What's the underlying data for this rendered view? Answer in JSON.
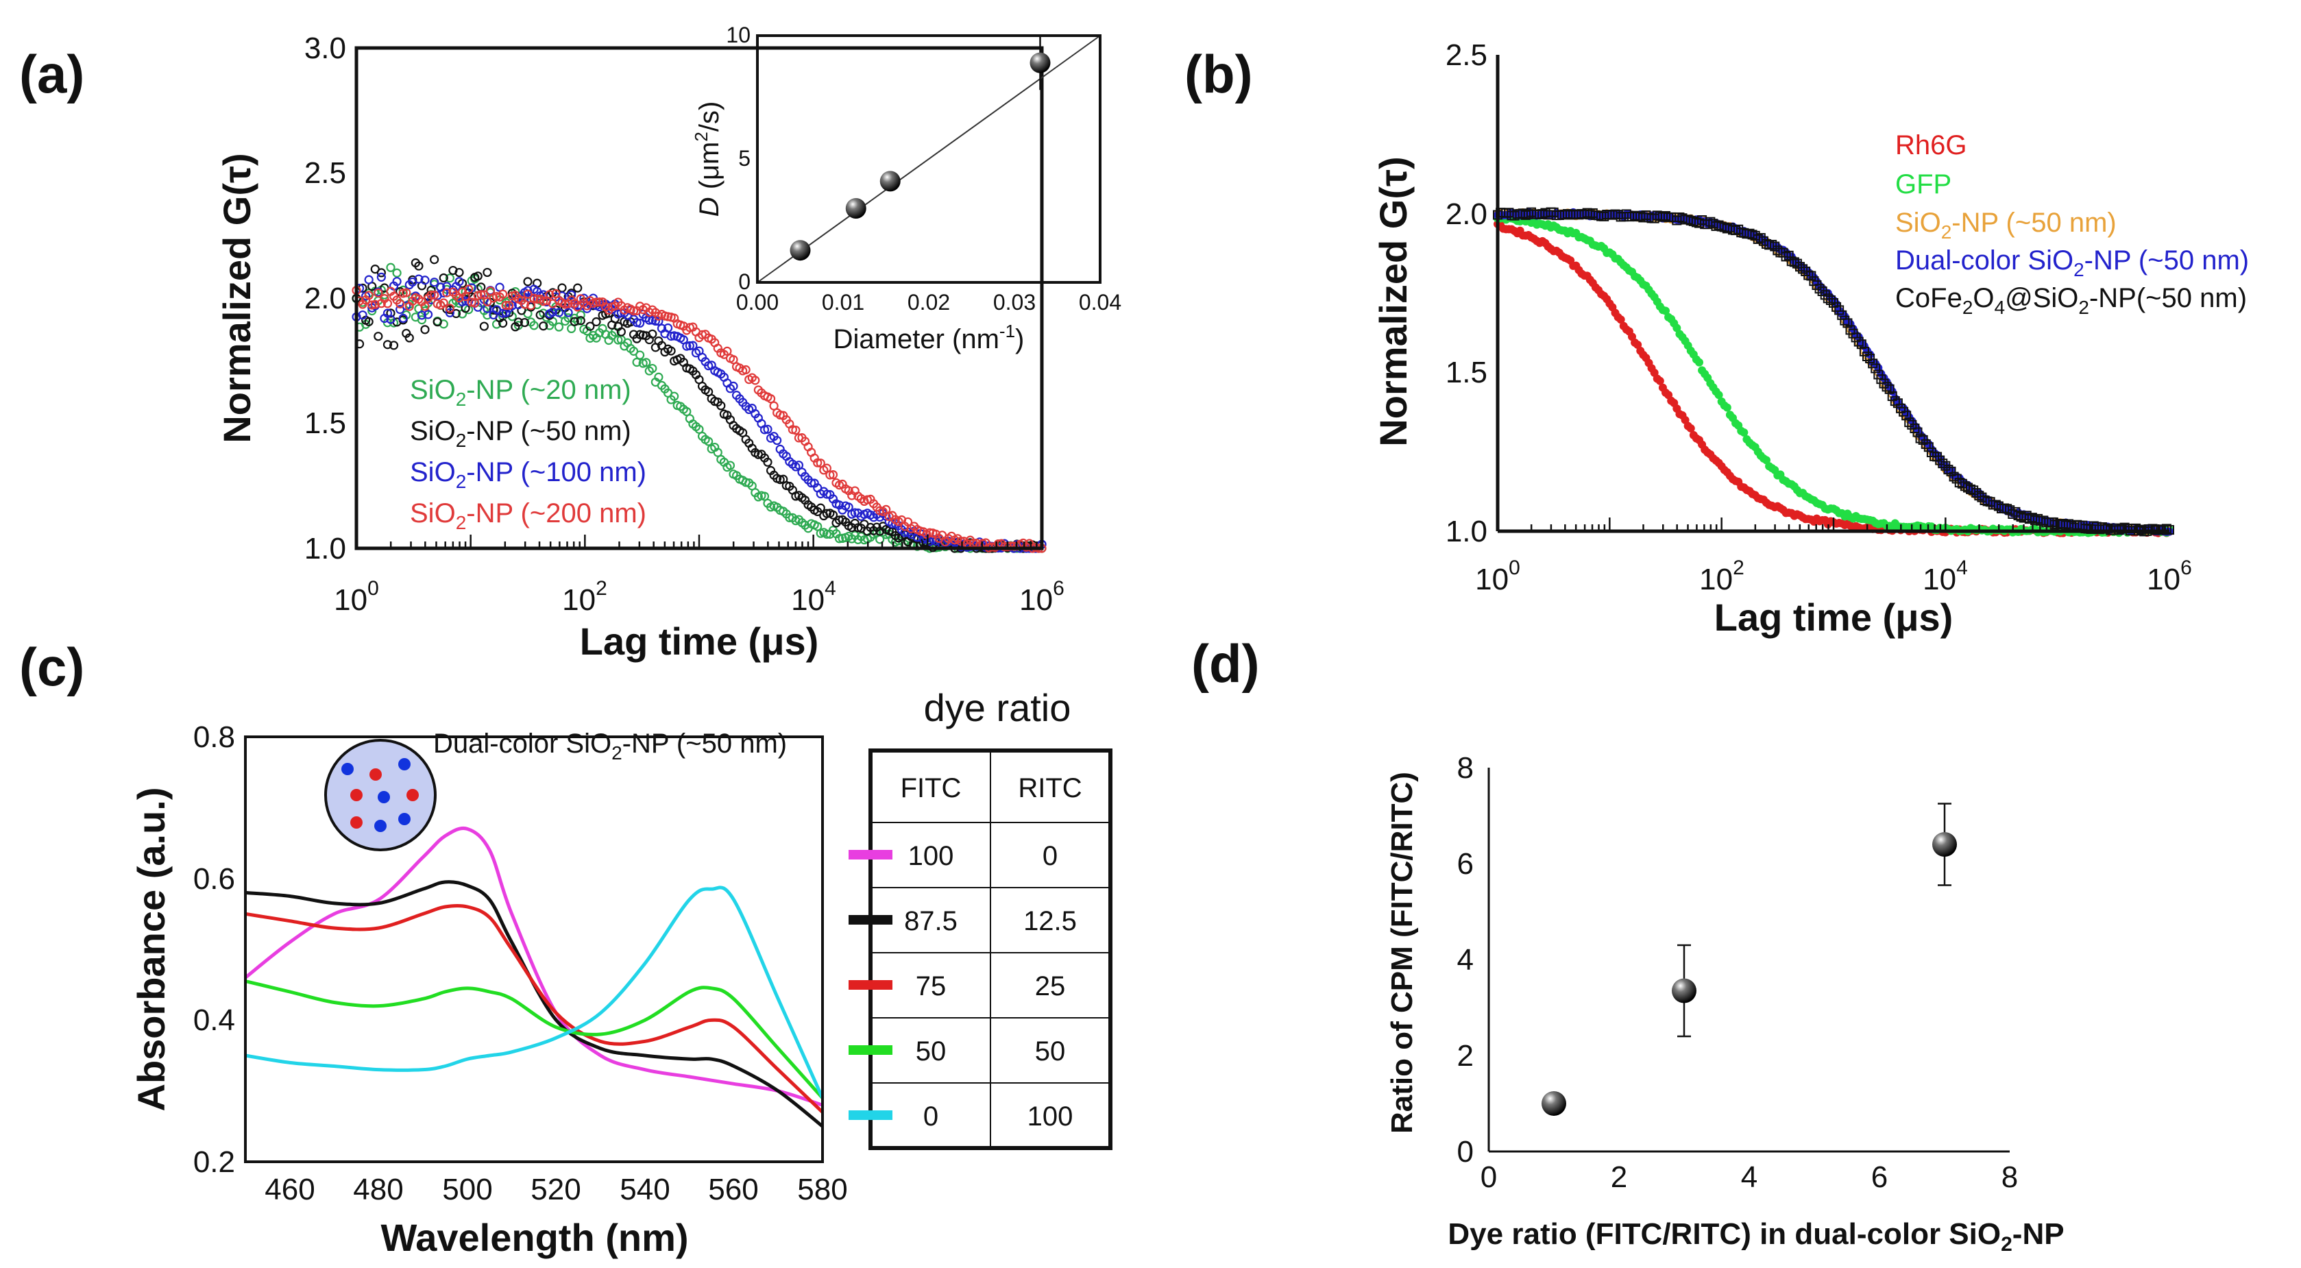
{
  "panels": {
    "a": {
      "label": "(a)",
      "xlabel": "Lag time (μs)",
      "ylabel": "Normalized G(τ)",
      "xticks": [
        {
          "b": "10",
          "e": "0"
        },
        {
          "b": "10",
          "e": "2"
        },
        {
          "b": "10",
          "e": "4"
        },
        {
          "b": "10",
          "e": "6"
        }
      ],
      "yticks": [
        "1.0",
        "1.5",
        "2.0",
        "2.5",
        "3.0"
      ],
      "legend": [
        {
          "pre": "SiO",
          "sub": "2",
          "post": "-NP (~20 nm)",
          "color": "#2eaa52"
        },
        {
          "pre": "SiO",
          "sub": "2",
          "post": "-NP (~50 nm)",
          "color": "#111111"
        },
        {
          "pre": "SiO",
          "sub": "2",
          "post": "-NP (~100 nm)",
          "color": "#2222cc"
        },
        {
          "pre": "SiO",
          "sub": "2",
          "post": "-NP (~200 nm)",
          "color": "#e03a3a"
        }
      ],
      "inset": {
        "xlabel_pre": "Diameter (nm",
        "xlabel_sup": "-1",
        "xlabel_post": ")",
        "ylabel_pre": "D",
        "ylabel_mid": " (μm",
        "ylabel_sup": "2",
        "ylabel_post": "/s)",
        "xticks": [
          "0.00",
          "0.01",
          "0.02",
          "0.03",
          "0.04"
        ],
        "yticks": [
          "0",
          "5",
          "10"
        ]
      }
    },
    "b": {
      "label": "(b)",
      "xlabel": "Lag time (μs)",
      "ylabel": "Normalized G(τ)",
      "xticks": [
        {
          "b": "10",
          "e": "0"
        },
        {
          "b": "10",
          "e": "2"
        },
        {
          "b": "10",
          "e": "4"
        },
        {
          "b": "10",
          "e": "6"
        }
      ],
      "yticks": [
        "1.0",
        "1.5",
        "2.0",
        "2.5"
      ],
      "legend": [
        {
          "pre": "Rh6G",
          "sub": "",
          "post": "",
          "color": "#e02020"
        },
        {
          "pre": "GFP",
          "sub": "",
          "post": "",
          "color": "#22dd44"
        },
        {
          "pre": "SiO",
          "sub": "2",
          "post": "-NP (~50 nm)",
          "color": "#e8a23a"
        },
        {
          "pre": "Dual-color SiO",
          "sub": "2",
          "post": "-NP (~50 nm)",
          "color": "#2222cc"
        },
        {
          "pre": "CoFe",
          "sub": "2",
          "mid": "O",
          "sub2": "4",
          "post": "@SiO",
          "sub3": "2",
          "post2": "-NP(~50 nm)",
          "color": "#111111"
        }
      ]
    },
    "c": {
      "label": "(c)",
      "xlabel": "Wavelength (nm)",
      "ylabel": "Absorbance (a.u.)",
      "xticks": [
        "460",
        "480",
        "500",
        "520",
        "540",
        "560",
        "580"
      ],
      "yticks": [
        "0.2",
        "0.4",
        "0.6",
        "0.8"
      ],
      "np_label_pre": "Dual-color SiO",
      "np_label_sub": "2",
      "np_label_post": "-NP (~50 nm)",
      "table_title": "dye ratio",
      "table_headers": [
        "FITC",
        "RITC"
      ],
      "table_rows": [
        {
          "fitc": "100",
          "ritc": "0",
          "color": "#e83ee0"
        },
        {
          "fitc": "87.5",
          "ritc": "12.5",
          "color": "#111111"
        },
        {
          "fitc": "75",
          "ritc": "25",
          "color": "#e02020"
        },
        {
          "fitc": "50",
          "ritc": "50",
          "color": "#22dd22"
        },
        {
          "fitc": "0",
          "ritc": "100",
          "color": "#22d4e8"
        }
      ]
    },
    "d": {
      "label": "(d)",
      "xlabel_pre": "Dye ratio (FITC/RITC) in dual-color SiO",
      "xlabel_sub": "2",
      "xlabel_post": "-NP",
      "ylabel": "Ratio of CPM (FITC/RITC)",
      "xticks": [
        "0",
        "2",
        "4",
        "6",
        "8"
      ],
      "yticks": [
        "0",
        "2",
        "4",
        "6",
        "8"
      ]
    }
  },
  "chart_data": [
    {
      "panel": "a",
      "type": "scatter",
      "xscale": "log",
      "xlim": [
        1,
        1000000
      ],
      "ylim": [
        1.0,
        3.0
      ],
      "series": [
        {
          "name": "SiO2-NP (~20 nm)",
          "color": "#2eaa52",
          "tau_d": 900,
          "noise": 0.14
        },
        {
          "name": "SiO2-NP (~50 nm)",
          "color": "#111111",
          "tau_d": 2000,
          "noise": 0.2
        },
        {
          "name": "SiO2-NP (~100 nm)",
          "color": "#2222cc",
          "tau_d": 3500,
          "noise": 0.1
        },
        {
          "name": "SiO2-NP (~200 nm)",
          "color": "#e03a3a",
          "tau_d": 6000,
          "noise": 0.04
        }
      ]
    },
    {
      "panel": "a-inset",
      "type": "scatter",
      "xlabel": "Diameter (nm-1)",
      "ylabel": "D (μm2/s)",
      "xlim": [
        0.0,
        0.04
      ],
      "ylim": [
        0,
        10
      ],
      "x": [
        0.005,
        0.0115,
        0.0155,
        0.033
      ],
      "y": [
        1.3,
        3.0,
        4.1,
        8.9
      ],
      "yerr": [
        0.1,
        0.2,
        0.2,
        1.1
      ],
      "fit": {
        "x0": 0.0,
        "y0": -0.2,
        "x1": 0.04,
        "y1": 10.8
      }
    },
    {
      "panel": "b",
      "type": "scatter",
      "xscale": "log",
      "xlim": [
        1,
        1000000
      ],
      "ylim": [
        1.0,
        2.5
      ],
      "series": [
        {
          "name": "Rh6G",
          "color": "#e02020",
          "tau_d": 25
        },
        {
          "name": "GFP",
          "color": "#22dd44",
          "tau_d": 70
        },
        {
          "name": "SiO2-NP (~50 nm)",
          "color": "#e8a23a",
          "tau_d": 2500
        },
        {
          "name": "Dual-color SiO2-NP (~50 nm)",
          "color": "#2222cc",
          "tau_d": 2600
        },
        {
          "name": "CoFe2O4@SiO2-NP(~50 nm)",
          "color": "#111111",
          "tau_d": 2500
        }
      ]
    },
    {
      "panel": "c",
      "type": "line",
      "xlim": [
        450,
        580
      ],
      "ylim": [
        0.2,
        0.8
      ],
      "x": [
        450,
        460,
        470,
        480,
        490,
        495,
        500,
        505,
        510,
        520,
        530,
        540,
        550,
        555,
        560,
        570,
        580
      ],
      "series": [
        {
          "name": "FITC 100 / RITC 0",
          "color": "#e83ee0",
          "values": [
            0.46,
            0.51,
            0.55,
            0.57,
            0.63,
            0.66,
            0.67,
            0.64,
            0.55,
            0.41,
            0.35,
            0.33,
            0.32,
            0.315,
            0.31,
            0.3,
            0.28
          ]
        },
        {
          "name": "FITC 87.5 / RITC 12.5",
          "color": "#111111",
          "values": [
            0.58,
            0.575,
            0.565,
            0.565,
            0.585,
            0.595,
            0.59,
            0.57,
            0.51,
            0.4,
            0.36,
            0.35,
            0.345,
            0.345,
            0.335,
            0.3,
            0.25
          ]
        },
        {
          "name": "FITC 75 / RITC 25",
          "color": "#e02020",
          "values": [
            0.55,
            0.54,
            0.53,
            0.53,
            0.55,
            0.56,
            0.56,
            0.545,
            0.5,
            0.41,
            0.37,
            0.37,
            0.39,
            0.4,
            0.39,
            0.33,
            0.27
          ]
        },
        {
          "name": "FITC 50 / RITC 50",
          "color": "#22dd22",
          "values": [
            0.455,
            0.44,
            0.425,
            0.42,
            0.43,
            0.44,
            0.445,
            0.44,
            0.43,
            0.39,
            0.38,
            0.4,
            0.44,
            0.445,
            0.43,
            0.36,
            0.29
          ]
        },
        {
          "name": "FITC 0 / RITC 100",
          "color": "#22d4e8",
          "values": [
            0.35,
            0.34,
            0.335,
            0.33,
            0.33,
            0.335,
            0.345,
            0.35,
            0.355,
            0.375,
            0.41,
            0.48,
            0.57,
            0.585,
            0.57,
            0.43,
            0.29
          ]
        }
      ]
    },
    {
      "panel": "d",
      "type": "scatter",
      "xlim": [
        0,
        8
      ],
      "ylim": [
        0,
        8
      ],
      "x": [
        1,
        3,
        7
      ],
      "y": [
        1.0,
        3.35,
        6.4
      ],
      "yerr": [
        0.0,
        0.95,
        0.85
      ]
    }
  ]
}
